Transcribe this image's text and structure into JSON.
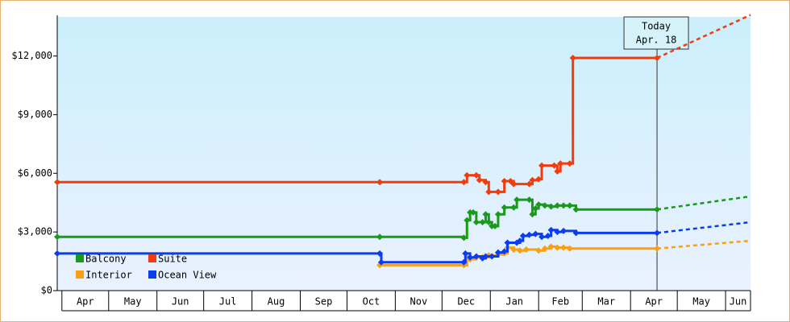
{
  "chart_data": {
    "type": "line",
    "xlim": [
      -3,
      442
    ],
    "xticks": [
      {
        "value": 0,
        "label": "Apr"
      },
      {
        "value": 30,
        "label": "May"
      },
      {
        "value": 61,
        "label": "Jun"
      },
      {
        "value": 91,
        "label": "Jul"
      },
      {
        "value": 122,
        "label": "Aug"
      },
      {
        "value": 153,
        "label": "Sep"
      },
      {
        "value": 183,
        "label": "Oct"
      },
      {
        "value": 214,
        "label": "Nov"
      },
      {
        "value": 244,
        "label": "Dec"
      },
      {
        "value": 275,
        "label": "Jan"
      },
      {
        "value": 306,
        "label": "Feb"
      },
      {
        "value": 334,
        "label": "Mar"
      },
      {
        "value": 365,
        "label": "Apr"
      },
      {
        "value": 395,
        "label": "May"
      },
      {
        "value": 426,
        "label": "Jun"
      }
    ],
    "ylim": [
      0,
      14000
    ],
    "yticks": [
      {
        "value": 0,
        "label": "$0"
      },
      {
        "value": 3000,
        "label": "$3,000"
      },
      {
        "value": 6000,
        "label": "$6,000"
      },
      {
        "value": 9000,
        "label": "$9,000"
      },
      {
        "value": 12000,
        "label": "$12,000"
      }
    ],
    "annotation": {
      "x": 382,
      "lines": [
        "Today",
        "Apr. 18"
      ]
    },
    "legend": "bottom-left",
    "series": [
      {
        "name": "Balcony",
        "color": "#1a9a1a",
        "x": [
          -3,
          204,
          258,
          260,
          262,
          264,
          266,
          270,
          272,
          274,
          276,
          278,
          280,
          284,
          290,
          292,
          300,
          302,
          304,
          306,
          310,
          314,
          318,
          322,
          326,
          330,
          382
        ],
        "values": [
          2750,
          2750,
          2700,
          3600,
          4000,
          4000,
          3500,
          3500,
          3900,
          3500,
          3300,
          3300,
          3900,
          4250,
          4250,
          4650,
          4650,
          3900,
          4200,
          4400,
          4350,
          4300,
          4350,
          4350,
          4350,
          4150,
          4150
        ],
        "forecast_x": [
          382,
          442
        ],
        "forecast_values": [
          4150,
          4820
        ]
      },
      {
        "name": "Suite",
        "color": "#f03c0e",
        "x": [
          -3,
          204,
          258,
          260,
          266,
          268,
          272,
          274,
          280,
          284,
          288,
          290,
          300,
          302,
          306,
          308,
          316,
          318,
          320,
          326,
          328,
          382
        ],
        "values": [
          5550,
          5550,
          5550,
          5900,
          5900,
          5650,
          5550,
          5050,
          5050,
          5600,
          5600,
          5450,
          5450,
          5650,
          5700,
          6400,
          6400,
          6100,
          6500,
          6500,
          11900,
          11900
        ],
        "forecast_x": [
          382,
          442
        ],
        "forecast_values": [
          11900,
          14100
        ]
      },
      {
        "name": "Interior",
        "color": "#f8a010",
        "x": [
          204,
          258,
          260,
          262,
          266,
          270,
          274,
          280,
          284,
          286,
          290,
          294,
          298,
          306,
          310,
          314,
          318,
          322,
          326,
          382
        ],
        "values": [
          1300,
          1300,
          1700,
          1600,
          1700,
          1700,
          1800,
          1850,
          1900,
          2200,
          2100,
          2050,
          2100,
          2050,
          2150,
          2250,
          2200,
          2200,
          2150,
          2150
        ],
        "forecast_x": [
          382,
          442
        ],
        "forecast_values": [
          2150,
          2550
        ]
      },
      {
        "name": "Ocean View",
        "color": "#0a3cf0",
        "x": [
          -3,
          204,
          205,
          258,
          259,
          262,
          266,
          270,
          272,
          276,
          280,
          284,
          286,
          292,
          294,
          296,
          300,
          304,
          308,
          312,
          314,
          318,
          322,
          330,
          382
        ],
        "values": [
          1900,
          1900,
          1450,
          1450,
          1900,
          1700,
          1750,
          1650,
          1750,
          1750,
          1950,
          2000,
          2450,
          2450,
          2550,
          2800,
          2850,
          2900,
          2750,
          2800,
          3100,
          3000,
          3050,
          2950,
          2950
        ],
        "forecast_x": [
          382,
          442
        ],
        "forecast_values": [
          2950,
          3500
        ]
      }
    ]
  }
}
